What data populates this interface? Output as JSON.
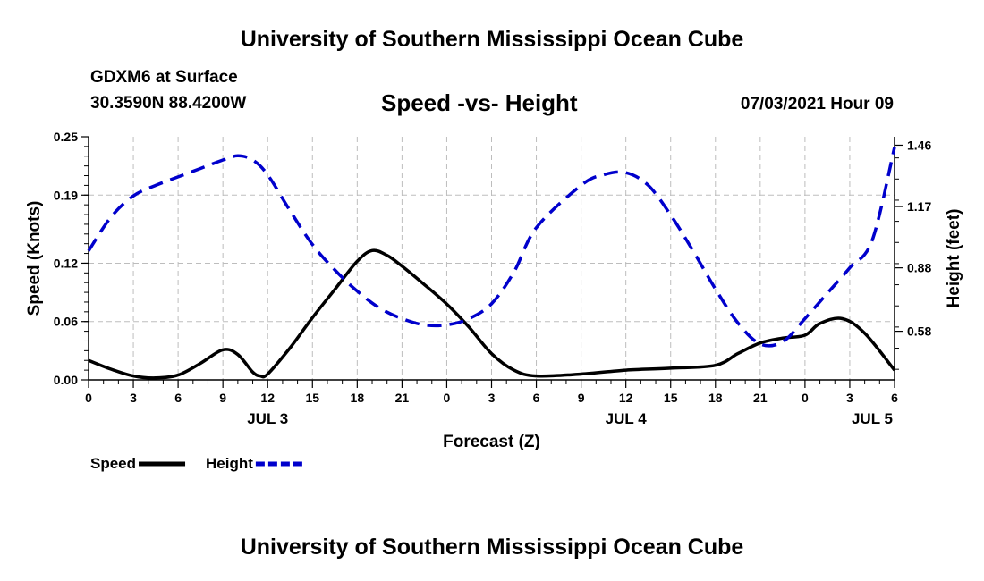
{
  "header": {
    "title": "University of Southern Mississippi Ocean Cube",
    "station": "GDXM6 at Surface",
    "coordinates": "30.3590N  88.4200W",
    "chart_title": "Speed -vs- Height",
    "datetime": "07/03/2021 Hour 09"
  },
  "footer": {
    "title": "University of Southern Mississippi Ocean Cube"
  },
  "chart_data": {
    "type": "line",
    "title": "Speed -vs- Height",
    "xlabel": "Forecast (Z)",
    "ylabel": "Speed (Knots)",
    "y2label": "Height (feet)",
    "xlim": [
      0,
      54
    ],
    "ylim": [
      0,
      0.25
    ],
    "y2lim": [
      0.35,
      1.5
    ],
    "x_ticks": [
      0,
      3,
      6,
      9,
      12,
      15,
      18,
      21,
      24,
      27,
      30,
      33,
      36,
      39,
      42,
      45,
      48,
      51,
      54
    ],
    "x_tick_labels": [
      "0",
      "3",
      "6",
      "9",
      "12",
      "15",
      "18",
      "21",
      "0",
      "3",
      "6",
      "9",
      "12",
      "15",
      "18",
      "21",
      "0",
      "3",
      "6"
    ],
    "day_labels": [
      {
        "x": 12,
        "label": "JUL 3"
      },
      {
        "x": 36,
        "label": "JUL 4"
      },
      {
        "x": 52.5,
        "label": "JUL 5"
      }
    ],
    "y_ticks": [
      0,
      0.06,
      0.12,
      0.19,
      0.25
    ],
    "y_tick_labels": [
      "0.00",
      "0.06",
      "0.12",
      "0.19",
      "0.25"
    ],
    "y2_ticks": [
      0.58,
      0.88,
      1.17,
      1.46
    ],
    "y2_tick_labels": [
      "0.58",
      "0.88",
      "1.17",
      "1.46"
    ],
    "grid": true,
    "legend": [
      {
        "name": "Speed",
        "color": "#000000",
        "style": "solid"
      },
      {
        "name": "Height",
        "color": "#0000cc",
        "style": "dashed"
      }
    ],
    "series": [
      {
        "name": "Speed",
        "axis": "left",
        "color": "#000000",
        "x": [
          0,
          1.5,
          3,
          4.5,
          6,
          7.5,
          9,
          10,
          11,
          11.5,
          12,
          13.5,
          15,
          16.5,
          18,
          19,
          20,
          21,
          22.5,
          24,
          25.5,
          27,
          28.5,
          30,
          33,
          36,
          39,
          42,
          43.5,
          45,
          46.5,
          48,
          49,
          50.5,
          52,
          54
        ],
        "values": [
          0.02,
          0.011,
          0.004,
          0.002,
          0.005,
          0.017,
          0.031,
          0.026,
          0.008,
          0.004,
          0.006,
          0.033,
          0.064,
          0.093,
          0.122,
          0.133,
          0.128,
          0.117,
          0.098,
          0.078,
          0.054,
          0.027,
          0.01,
          0.004,
          0.006,
          0.01,
          0.012,
          0.015,
          0.027,
          0.038,
          0.043,
          0.046,
          0.058,
          0.063,
          0.048,
          0.01
        ]
      },
      {
        "name": "Height",
        "axis": "right",
        "color": "#0000cc",
        "x": [
          0,
          1.5,
          3,
          4.5,
          6,
          7.5,
          9,
          10,
          11,
          12,
          13.5,
          15,
          16.5,
          18,
          19.5,
          21,
          22.5,
          24,
          25.5,
          27,
          28.5,
          30,
          33,
          34.5,
          36,
          37.5,
          39,
          40.5,
          42,
          43.5,
          45,
          46.5,
          48,
          49.5,
          51,
          52.5,
          54
        ],
        "values": [
          0.96,
          1.12,
          1.22,
          1.27,
          1.31,
          1.35,
          1.39,
          1.41,
          1.39,
          1.32,
          1.15,
          0.99,
          0.87,
          0.77,
          0.69,
          0.64,
          0.61,
          0.61,
          0.64,
          0.71,
          0.86,
          1.07,
          1.27,
          1.32,
          1.33,
          1.27,
          1.13,
          0.96,
          0.78,
          0.62,
          0.52,
          0.53,
          0.64,
          0.76,
          0.88,
          1.01,
          1.45
        ]
      }
    ]
  }
}
